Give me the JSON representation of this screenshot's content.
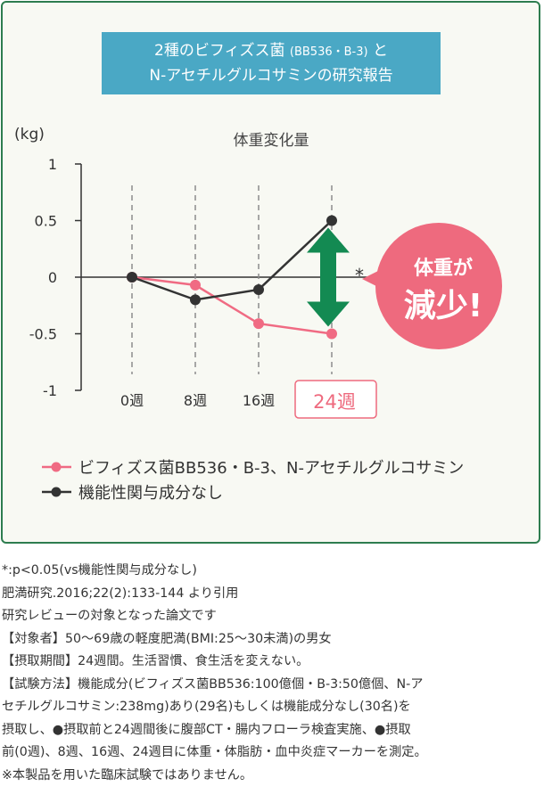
{
  "title": {
    "line1_main": "2種のビフィズス菌",
    "line1_paren": "(BB536・B-3)",
    "line1_end": "と",
    "line2": "N-アセチルグルコサミンの研究報告"
  },
  "chart_data": {
    "type": "line",
    "title": "体重変化量",
    "ylabel": "(kg)",
    "ylim": [
      -1,
      1
    ],
    "yticks": [
      "1",
      "0.5",
      "0",
      "-0.5",
      "-1"
    ],
    "categories": [
      "0週",
      "8週",
      "16週",
      "24週"
    ],
    "highlight_category": "24週",
    "series": [
      {
        "name": "ビフィズス菌BB536・B-3、N-アセチルグルコサミン",
        "color": "#f06b83",
        "values": [
          0,
          -0.07,
          -0.41,
          -0.5
        ]
      },
      {
        "name": "機能性関与成分なし",
        "color": "#333333",
        "values": [
          0,
          -0.2,
          -0.11,
          0.5
        ]
      }
    ],
    "significance_mark": "*",
    "callout": {
      "line1": "体重が",
      "line2": "減少!",
      "color": "#ee6a7e"
    },
    "arrow_color": "#138a52"
  },
  "notes": [
    "*:p<0.05(vs機能性関与成分なし)",
    "肥満研究.2016;22(2):133-144 より引用",
    "研究レビューの対象となった論文です",
    "【対象者】50〜69歳の軽度肥満(BMI:25〜30未満)の男女",
    "【摂取期間】24週間。生活習慣、食生活を変えない。",
    "【試験方法】機能成分(ビフィズス菌BB536:100億個・B-3:50億個、N-ア",
    "セチルグルコサミン:238mg)あり(29名)もしくは機能成分なし(30名)を",
    "摂取し、●摂取前と24週間後に腹部CT・腸内フローラ検査実施、●摂取",
    "前(0週)、8週、16週、24週目に体重・体脂肪・血中炎症マーカーを測定。",
    "※本製品を用いた臨床試験ではありません。"
  ]
}
